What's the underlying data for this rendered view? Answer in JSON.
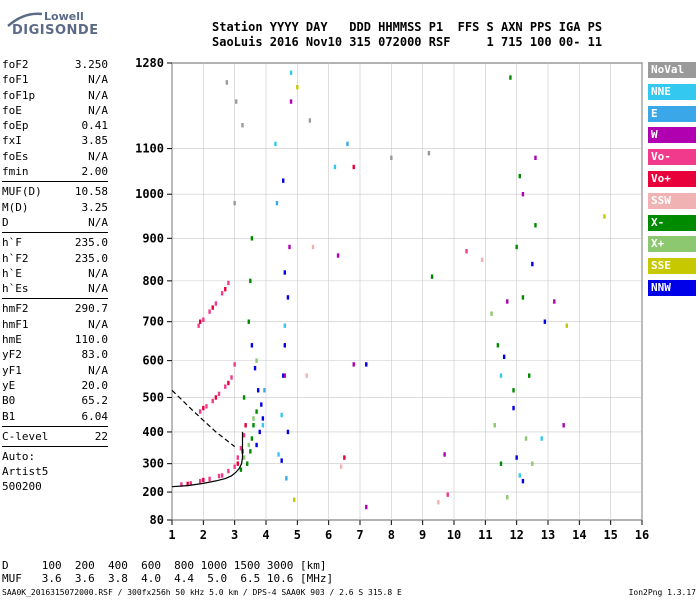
{
  "logo": {
    "line1": "Lowell",
    "line2": "DIGISONDE"
  },
  "header": {
    "line1": "Station YYYY DAY   DDD HHMMSS P1  FFS S AXN PPS IGA PS",
    "line2": "SaoLuis 2016 Nov10 315 072000 RSF     1 715 100 00- 11"
  },
  "params": {
    "g1": [
      {
        "k": "foF2",
        "v": "3.250"
      },
      {
        "k": "foF1",
        "v": "N/A"
      },
      {
        "k": "foF1p",
        "v": "N/A"
      },
      {
        "k": "foE",
        "v": "N/A"
      },
      {
        "k": "foEp",
        "v": "0.41"
      },
      {
        "k": "fxI",
        "v": "3.85"
      },
      {
        "k": "foEs",
        "v": "N/A"
      },
      {
        "k": "fmin",
        "v": "2.00"
      }
    ],
    "g2": [
      {
        "k": "MUF(D)",
        "v": "10.58"
      },
      {
        "k": "M(D)",
        "v": "3.25"
      },
      {
        "k": "D",
        "v": "N/A"
      }
    ],
    "g3": [
      {
        "k": "h`F",
        "v": "235.0"
      },
      {
        "k": "h`F2",
        "v": "235.0"
      },
      {
        "k": "h`E",
        "v": "N/A"
      },
      {
        "k": "h`Es",
        "v": "N/A"
      }
    ],
    "g4": [
      {
        "k": "hmF2",
        "v": "290.7"
      },
      {
        "k": "hmF1",
        "v": "N/A"
      },
      {
        "k": "hmE",
        "v": "110.0"
      },
      {
        "k": "yF2",
        "v": "83.0"
      },
      {
        "k": "yF1",
        "v": "N/A"
      },
      {
        "k": "yE",
        "v": "20.0"
      },
      {
        "k": "B0",
        "v": "65.2"
      },
      {
        "k": "B1",
        "v": "6.04"
      }
    ],
    "g5": [
      {
        "k": "C-level",
        "v": "22"
      }
    ],
    "autoscaling": [
      "Auto:",
      "Artist5",
      "500200"
    ]
  },
  "legend": [
    {
      "label": "NoVal",
      "color": "#9a9a9a"
    },
    {
      "label": "NNE",
      "color": "#33c8f0"
    },
    {
      "label": "E",
      "color": "#3aa8e8"
    },
    {
      "label": "W",
      "color": "#b000b0"
    },
    {
      "label": "Vo-",
      "color": "#f23a8c"
    },
    {
      "label": "Vo+",
      "color": "#e8003a"
    },
    {
      "label": "SSW",
      "color": "#f0b2b2"
    },
    {
      "label": "X-",
      "color": "#008a00"
    },
    {
      "label": "X+",
      "color": "#8cc870"
    },
    {
      "label": "SSE",
      "color": "#c8c800"
    },
    {
      "label": "NNW",
      "color": "#0000e8"
    }
  ],
  "bottom": {
    "line1": "D     100  200  400  600  800 1000 1500 3000 [km]",
    "line2": "MUF   3.6  3.6  3.8  4.0  4.4  5.0  6.5 10.6 [MHz]"
  },
  "footer": {
    "left": "SAA0K_2016315072000.RSF / 300fx256h 50 kHz 5.0 km / DPS-4 SAA0K 903 / 2.6 S 315.8 E",
    "right": "Ion2Png 1.3.17"
  },
  "chart_data": {
    "type": "scatter",
    "title": "",
    "xlabel": "",
    "ylabel": "",
    "x_ticks": [
      1,
      2,
      3,
      4,
      5,
      6,
      7,
      8,
      9,
      10,
      11,
      12,
      13,
      14,
      15,
      16
    ],
    "y_ticks": [
      80,
      200,
      300,
      400,
      500,
      600,
      700,
      800,
      900,
      1000,
      1100,
      1280
    ],
    "xlim": [
      1,
      16
    ],
    "ylim": [
      80,
      1280
    ],
    "grid": true,
    "legend_placement": "right",
    "series": [
      {
        "name": "Vo-",
        "color": "#f23a8c",
        "points": [
          [
            1.85,
            690
          ],
          [
            2.0,
            705
          ],
          [
            2.2,
            725
          ],
          [
            2.4,
            745
          ],
          [
            2.6,
            770
          ],
          [
            2.8,
            795
          ],
          [
            1.9,
            460
          ],
          [
            2.1,
            475
          ],
          [
            2.3,
            490
          ],
          [
            2.5,
            510
          ],
          [
            2.7,
            530
          ],
          [
            2.9,
            555
          ],
          [
            3.0,
            590
          ],
          [
            2.6,
            260
          ],
          [
            2.8,
            275
          ],
          [
            3.0,
            290
          ],
          [
            3.1,
            320
          ],
          [
            3.2,
            350
          ],
          [
            3.3,
            390
          ],
          [
            1.3,
            228
          ],
          [
            1.6,
            232
          ],
          [
            1.9,
            240
          ],
          [
            2.2,
            248
          ],
          [
            2.5,
            258
          ],
          [
            9.8,
            190
          ],
          [
            10.4,
            870
          ]
        ]
      },
      {
        "name": "Vo+",
        "color": "#e8003a",
        "points": [
          [
            1.9,
            700
          ],
          [
            2.3,
            735
          ],
          [
            2.7,
            780
          ],
          [
            2.0,
            470
          ],
          [
            2.4,
            500
          ],
          [
            2.8,
            540
          ],
          [
            3.1,
            300
          ],
          [
            3.25,
            340
          ],
          [
            3.35,
            420
          ],
          [
            1.5,
            230
          ],
          [
            2.0,
            244
          ],
          [
            6.5,
            320
          ],
          [
            6.8,
            1060
          ]
        ]
      },
      {
        "name": "X-",
        "color": "#008a00",
        "points": [
          [
            3.4,
            300
          ],
          [
            3.5,
            340
          ],
          [
            3.55,
            380
          ],
          [
            3.6,
            420
          ],
          [
            3.7,
            460
          ],
          [
            3.3,
            500
          ],
          [
            3.45,
            700
          ],
          [
            3.5,
            800
          ],
          [
            3.55,
            900
          ],
          [
            3.2,
            280
          ],
          [
            11.5,
            300
          ],
          [
            11.9,
            520
          ],
          [
            12.0,
            880
          ],
          [
            12.1,
            1040
          ],
          [
            12.2,
            760
          ],
          [
            11.4,
            640
          ],
          [
            12.4,
            560
          ],
          [
            12.6,
            930
          ],
          [
            9.3,
            810
          ],
          [
            11.8,
            1250
          ]
        ]
      },
      {
        "name": "X+",
        "color": "#8cc870",
        "points": [
          [
            3.3,
            320
          ],
          [
            3.45,
            360
          ],
          [
            3.6,
            440
          ],
          [
            3.7,
            600
          ],
          [
            11.3,
            420
          ],
          [
            11.7,
            180
          ],
          [
            12.3,
            380
          ],
          [
            12.5,
            300
          ],
          [
            11.2,
            720
          ]
        ]
      },
      {
        "name": "NNW",
        "color": "#0000e8",
        "points": [
          [
            3.7,
            360
          ],
          [
            3.8,
            400
          ],
          [
            3.9,
            440
          ],
          [
            3.85,
            480
          ],
          [
            3.75,
            520
          ],
          [
            3.65,
            580
          ],
          [
            3.55,
            640
          ],
          [
            4.6,
            640
          ],
          [
            4.55,
            560
          ],
          [
            4.7,
            400
          ],
          [
            4.5,
            310
          ],
          [
            4.6,
            820
          ],
          [
            4.55,
            1030
          ],
          [
            4.7,
            760
          ],
          [
            12.0,
            320
          ],
          [
            11.6,
            610
          ],
          [
            12.5,
            840
          ],
          [
            12.9,
            700
          ],
          [
            11.9,
            470
          ],
          [
            12.2,
            240
          ],
          [
            7.2,
            590
          ]
        ]
      },
      {
        "name": "NNE",
        "color": "#33c8f0",
        "points": [
          [
            4.4,
            330
          ],
          [
            4.5,
            450
          ],
          [
            4.6,
            690
          ],
          [
            4.8,
            1260
          ],
          [
            4.3,
            1110
          ],
          [
            6.2,
            1060
          ],
          [
            12.1,
            260
          ],
          [
            11.5,
            560
          ],
          [
            3.9,
            420
          ],
          [
            12.8,
            380
          ]
        ]
      },
      {
        "name": "E",
        "color": "#3aa8e8",
        "points": [
          [
            4.35,
            980
          ],
          [
            4.65,
            250
          ],
          [
            3.95,
            520
          ],
          [
            6.6,
            1110
          ]
        ]
      },
      {
        "name": "W",
        "color": "#b000b0",
        "points": [
          [
            4.6,
            560
          ],
          [
            4.75,
            880
          ],
          [
            4.8,
            1200
          ],
          [
            6.3,
            860
          ],
          [
            12.6,
            1080
          ],
          [
            12.2,
            1000
          ],
          [
            9.7,
            330
          ],
          [
            13.2,
            750
          ],
          [
            13.5,
            420
          ],
          [
            7.2,
            140
          ],
          [
            11.7,
            750
          ],
          [
            6.8,
            590
          ]
        ]
      },
      {
        "name": "SSW",
        "color": "#f0b2b2",
        "points": [
          [
            5.3,
            560
          ],
          [
            5.5,
            880
          ],
          [
            9.5,
            160
          ],
          [
            6.4,
            290
          ],
          [
            10.9,
            850
          ]
        ]
      },
      {
        "name": "SSE",
        "color": "#c8c800",
        "points": [
          [
            5.0,
            1230
          ],
          [
            13.6,
            690
          ],
          [
            14.8,
            950
          ],
          [
            4.9,
            170
          ]
        ]
      },
      {
        "name": "NoVal",
        "color": "#9a9a9a",
        "points": [
          [
            2.75,
            1240
          ],
          [
            3.05,
            1200
          ],
          [
            3.25,
            1150
          ],
          [
            5.4,
            1160
          ],
          [
            9.2,
            1090
          ],
          [
            8.0,
            1080
          ],
          [
            3.0,
            980
          ]
        ]
      }
    ],
    "curves": [
      {
        "kind": "profile",
        "color": "#000000",
        "points": [
          [
            1.0,
            220
          ],
          [
            1.5,
            224
          ],
          [
            2.0,
            232
          ],
          [
            2.4,
            241
          ],
          [
            2.7,
            249
          ],
          [
            2.9,
            259
          ],
          [
            3.05,
            272
          ],
          [
            3.15,
            285
          ],
          [
            3.22,
            300
          ],
          [
            3.25,
            320
          ],
          [
            3.25,
            360
          ],
          [
            3.25,
            400
          ]
        ]
      },
      {
        "kind": "dashed",
        "color": "#000000",
        "points": [
          [
            1.0,
            520
          ],
          [
            1.7,
            460
          ],
          [
            2.4,
            400
          ],
          [
            3.0,
            355
          ]
        ]
      }
    ]
  }
}
